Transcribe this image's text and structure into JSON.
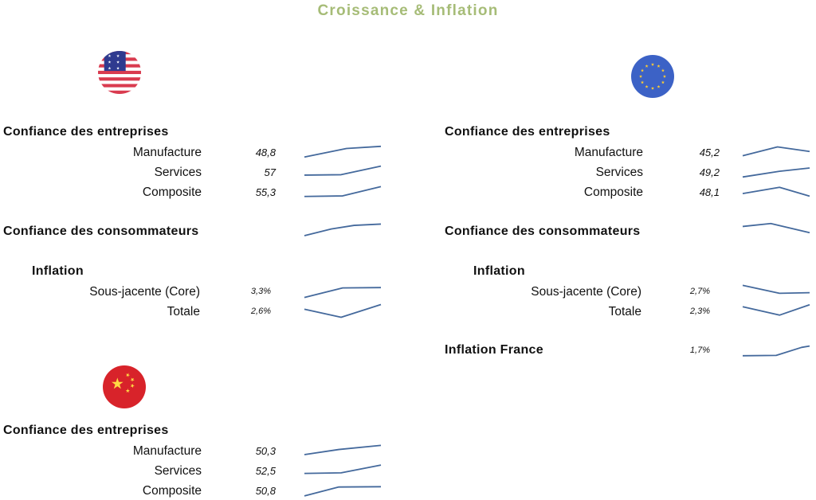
{
  "title": "Croissance & Inflation",
  "colors": {
    "title": "#a6bc77",
    "spark": "#44699c",
    "text": "#111111",
    "us_flag_red": "#d93b4f",
    "us_flag_blue": "#2f3a8f",
    "eu_flag_blue": "#3c62c6",
    "eu_flag_star": "#ffce31",
    "cn_flag_red": "#d8232a",
    "cn_flag_star": "#ffda44"
  },
  "chart_data": {
    "type": "sparkline-dashboard",
    "note": "trend arrays are [x, relative-level 0-100] read from unlabeled sparklines",
    "regions": {
      "us": {
        "icon": "us-flag-icon",
        "business": {
          "heading": "Confiance des entreprises",
          "rows": [
            {
              "label": "Manufacture",
              "value": "48,8",
              "trend": [
                [
                  0,
                  15
                ],
                [
                  55,
                  75
                ],
                [
                  100,
                  90
                ]
              ]
            },
            {
              "label": "Services",
              "value": "57",
              "trend": [
                [
                  0,
                  28
                ],
                [
                  48,
                  31
                ],
                [
                  100,
                  91
                ]
              ]
            },
            {
              "label": "Composite",
              "value": "55,3",
              "trend": [
                [
                  0,
                  18
                ],
                [
                  50,
                  22
                ],
                [
                  100,
                  87
                ]
              ]
            }
          ]
        },
        "consumer": {
          "heading": "Confiance des consommateurs",
          "trend": [
            [
              0,
              22
            ],
            [
              35,
              58
            ],
            [
              65,
              78
            ],
            [
              100,
              85
            ]
          ]
        },
        "inflation": {
          "heading": "Inflation",
          "rows": [
            {
              "label": "Sous-jacente (Core)",
              "value": "3,3%",
              "trend": [
                [
                  0,
                  12
                ],
                [
                  50,
                  72
                ],
                [
                  100,
                  74
                ]
              ]
            },
            {
              "label": "Totale",
              "value": "2,6%",
              "trend": [
                [
                  0,
                  60
                ],
                [
                  48,
                  12
                ],
                [
                  100,
                  88
                ]
              ]
            }
          ]
        }
      },
      "eu": {
        "icon": "eu-flag-icon",
        "business": {
          "heading": "Confiance des entreprises",
          "rows": [
            {
              "label": "Manufacture",
              "value": "45,2",
              "trend": [
                [
                  0,
                  24
                ],
                [
                  52,
                  86
                ],
                [
                  100,
                  54
                ]
              ]
            },
            {
              "label": "Services",
              "value": "49,2",
              "trend": [
                [
                  0,
                  15
                ],
                [
                  55,
                  55
                ],
                [
                  100,
                  78
                ]
              ]
            },
            {
              "label": "Composite",
              "value": "48,1",
              "trend": [
                [
                  0,
                  38
                ],
                [
                  55,
                  82
                ],
                [
                  100,
                  20
                ]
              ]
            }
          ]
        },
        "consumer": {
          "heading": "Confiance des consommateurs",
          "trend": [
            [
              0,
              72
            ],
            [
              42,
              88
            ],
            [
              100,
              38
            ]
          ]
        },
        "inflation": {
          "heading": "Inflation",
          "rows": [
            {
              "label": "Sous-jacente (Core)",
              "value": "2,7%",
              "trend": [
                [
                  0,
                  88
                ],
                [
                  55,
                  38
                ],
                [
                  100,
                  42
                ]
              ]
            },
            {
              "label": "Totale",
              "value": "2,3%",
              "trend": [
                [
                  0,
                  70
                ],
                [
                  55,
                  20
                ],
                [
                  100,
                  82
                ]
              ]
            }
          ]
        },
        "france": {
          "heading": "Inflation France",
          "value": "1,7%",
          "trend": [
            [
              0,
              20
            ],
            [
              50,
              22
            ],
            [
              88,
              70
            ],
            [
              100,
              78
            ]
          ]
        }
      },
      "cn": {
        "icon": "cn-flag-icon",
        "business": {
          "heading": "Confiance des entreprises",
          "rows": [
            {
              "label": "Manufacture",
              "value": "50,3",
              "trend": [
                [
                  0,
                  22
                ],
                [
                  45,
                  58
                ],
                [
                  100,
                  87
                ]
              ]
            },
            {
              "label": "Services",
              "value": "52,5",
              "trend": [
                [
                  0,
                  30
                ],
                [
                  48,
                  34
                ],
                [
                  100,
                  88
                ]
              ]
            },
            {
              "label": "Composite",
              "value": "50,8",
              "trend": [
                [
                  0,
                  12
                ],
                [
                  45,
                  74
                ],
                [
                  100,
                  76
                ]
              ]
            }
          ]
        }
      }
    }
  }
}
